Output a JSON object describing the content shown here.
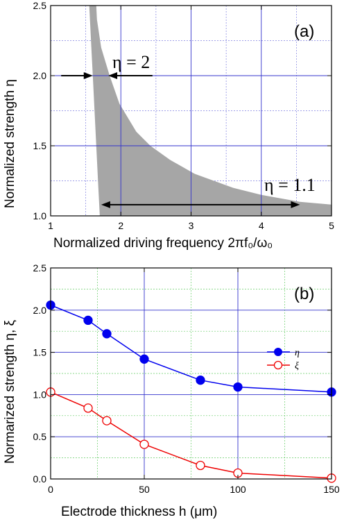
{
  "colors": {
    "region_fill": "#a6a6a6",
    "major_grid": "#3333cc",
    "minor_grid_a": "#8080e0",
    "minor_grid_b": "#66cc66",
    "eta_series": "#0000ee",
    "xi_series": "#ee0000"
  },
  "chart_data": [
    {
      "panel": "(a)",
      "type": "area",
      "xlabel": "Normalized driving frequency 2πf₀/ω₀",
      "ylabel": "Normalized strength η",
      "xlim": [
        1,
        5
      ],
      "ylim": [
        1.0,
        2.5
      ],
      "xticks": [
        "1",
        "2",
        "3",
        "4",
        "5"
      ],
      "yticks": [
        "1.0",
        "1.5",
        "2.0",
        "2.5"
      ],
      "grid": true,
      "region": {
        "name": "",
        "left_boundary": {
          "eta": [
            2.5,
            2.4,
            2.2,
            2.0,
            1.8,
            1.6,
            1.4,
            1.2,
            1.0
          ],
          "f": [
            1.55,
            1.56,
            1.58,
            1.6,
            1.62,
            1.64,
            1.66,
            1.68,
            1.7
          ]
        },
        "right_boundary": {
          "eta": [
            2.5,
            2.4,
            2.2,
            2.0,
            1.8,
            1.6,
            1.5,
            1.4,
            1.3,
            1.2,
            1.15,
            1.1,
            1.08,
            1.05
          ],
          "f": [
            1.65,
            1.66,
            1.72,
            1.84,
            1.98,
            2.22,
            2.42,
            2.7,
            3.05,
            3.6,
            4.0,
            4.55,
            5.0,
            5.0
          ]
        }
      },
      "annotations": [
        {
          "text": "η = 2",
          "eta": 2.0,
          "f_from": 1.15,
          "f_to": 2.45
        },
        {
          "text": "η = 1.1",
          "eta": 1.08,
          "f_from": 1.72,
          "f_to": 4.55
        }
      ]
    },
    {
      "panel": "(b)",
      "type": "line",
      "xlabel": "Electrode thickness h (μm)",
      "ylabel": "Normarized strength η, ξ",
      "xlim": [
        0,
        150
      ],
      "ylim": [
        0.0,
        2.5
      ],
      "xticks": [
        "0",
        "50",
        "100",
        "150"
      ],
      "yticks": [
        "0.0",
        "0.5",
        "1.0",
        "1.5",
        "2.0",
        "2.5"
      ],
      "grid": true,
      "legend_position": "right",
      "x": [
        0,
        20,
        30,
        50,
        80,
        100,
        150
      ],
      "series": [
        {
          "name": "η",
          "marker": "filled-circle",
          "values": [
            2.06,
            1.88,
            1.72,
            1.42,
            1.17,
            1.09,
            1.03
          ]
        },
        {
          "name": "ξ",
          "marker": "open-circle",
          "values": [
            1.03,
            0.84,
            0.69,
            0.41,
            0.16,
            0.07,
            0.01
          ]
        }
      ]
    }
  ]
}
